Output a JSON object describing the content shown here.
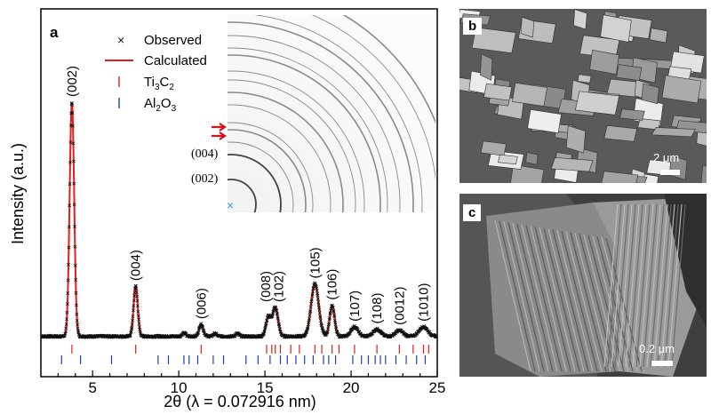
{
  "panels": {
    "a": {
      "letter": "a",
      "colors": {
        "observed": "#111111",
        "calculated": "#e0201b",
        "ti3c2_ticks": "#e0201b",
        "al2o3_ticks": "#1f3fbf",
        "inset_marker": "#3a9ad0",
        "arrows": "#d4141a"
      },
      "legend": {
        "observed": "Observed",
        "calculated": "Calculated",
        "ti3c2": [
          "Ti",
          "3",
          "C",
          "2"
        ],
        "al2o3": [
          "Al",
          "2",
          "O",
          "3"
        ]
      },
      "inset": {
        "labels": [
          "(004)",
          "(002)"
        ],
        "center_marker": "×"
      }
    },
    "b": {
      "letter": "b",
      "scale_label": "2 μm"
    },
    "c": {
      "letter": "c",
      "scale_label": "0.2 μm"
    }
  },
  "chart_data": {
    "type": "line",
    "xlabel": "2θ (λ = 0.072916 nm)",
    "ylabel": "Intensity (a.u.)",
    "xlim": [
      2,
      25
    ],
    "ylim": [
      0,
      100
    ],
    "xticks": [
      5,
      10,
      15,
      20,
      25
    ],
    "grid": false,
    "legend_position": "top-left",
    "baseline": 2,
    "peaks": [
      {
        "x": 3.8,
        "height": 98,
        "width": 0.13,
        "label": "(002)"
      },
      {
        "x": 7.5,
        "height": 21,
        "width": 0.12,
        "label": "(004)"
      },
      {
        "x": 11.3,
        "height": 5,
        "width": 0.12,
        "label": "(006)"
      },
      {
        "x": 15.2,
        "height": 8,
        "width": 0.14,
        "label": "(008)"
      },
      {
        "x": 15.6,
        "height": 12,
        "width": 0.16,
        "label": "(102)"
      },
      {
        "x": 17.9,
        "height": 22,
        "width": 0.22,
        "label": "(105)"
      },
      {
        "x": 18.9,
        "height": 13,
        "width": 0.14,
        "label": "(106)"
      },
      {
        "x": 20.2,
        "height": 4,
        "width": 0.2,
        "label": "(107)"
      },
      {
        "x": 21.5,
        "height": 3,
        "width": 0.22,
        "label": "(108)"
      },
      {
        "x": 22.8,
        "height": 2.5,
        "width": 0.22,
        "label": "(0012)"
      },
      {
        "x": 24.2,
        "height": 4,
        "width": 0.25,
        "label": "(1010)"
      }
    ],
    "minor_peaks": [
      {
        "x": 10.3,
        "height": 1.5,
        "width": 0.1
      },
      {
        "x": 12.1,
        "height": 1.2,
        "width": 0.1
      },
      {
        "x": 13.4,
        "height": 1.2,
        "width": 0.1
      }
    ],
    "series": [
      {
        "name": "Observed",
        "marker": "x"
      },
      {
        "name": "Calculated",
        "line": "solid"
      }
    ],
    "ti3c2_ticks": [
      3.8,
      7.5,
      11.3,
      15.1,
      15.4,
      15.6,
      15.9,
      16.5,
      17.0,
      17.9,
      18.3,
      18.9,
      19.3,
      20.2,
      21.5,
      22.8,
      23.6,
      24.2,
      24.5
    ],
    "al2o3_ticks": [
      3.2,
      4.3,
      6.1,
      8.8,
      9.4,
      10.3,
      10.6,
      11.1,
      12.0,
      12.6,
      13.9,
      14.6,
      15.3,
      15.9,
      16.3,
      16.8,
      17.3,
      17.8,
      18.4,
      18.7,
      19.1,
      20.1,
      20.6,
      21.0,
      21.4,
      21.7,
      22.0,
      22.6,
      23.2,
      23.8,
      24.3
    ]
  }
}
